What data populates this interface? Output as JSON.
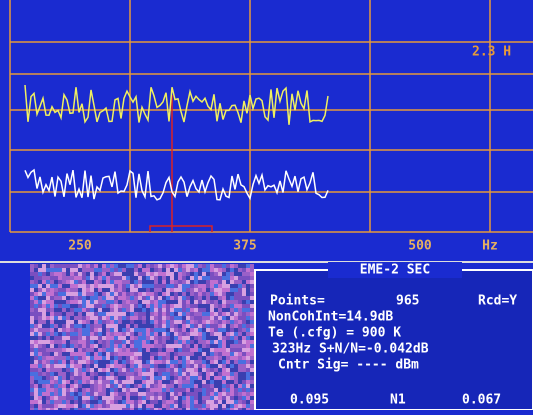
{
  "plot": {
    "corner_readout": "2.3 H",
    "x_labels": [
      "250",
      "375",
      "500"
    ],
    "x_unit": "Hz"
  },
  "panel": {
    "title": "EME-2 SEC",
    "lines": [
      [
        "Points=",
        "965",
        "Rcd=Y"
      ],
      [
        "NonCohInt=14.9dB"
      ],
      [
        "Te (.cfg) = 900 K"
      ],
      [
        "323Hz S+N/N=-0.042dB"
      ],
      [
        "Cntr Sig= ---- dBm"
      ],
      [
        "0.095",
        "N1",
        "0.067"
      ]
    ]
  }
}
